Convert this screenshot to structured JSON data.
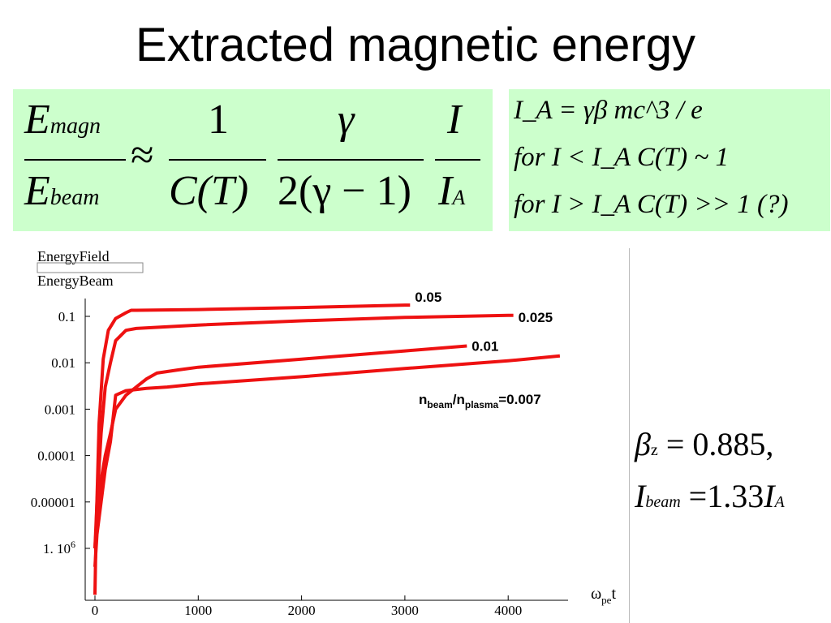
{
  "title": "Extracted magnetic energy",
  "formula": {
    "lhs_num": "E",
    "lhs_num_sub": "magn",
    "lhs_den": "E",
    "lhs_den_sub": "beam",
    "approx": "≈",
    "f1_num": "1",
    "f1_den": "C(T)",
    "f2_num": "γ",
    "f2_den": "2(γ − 1)",
    "f3_num": "I",
    "f3_den": "I",
    "f3_den_sub": "A"
  },
  "conditions": {
    "line1": "I_A = γβ mc^3 / e",
    "line2": "for I < I_A C(T) ~ 1",
    "line3": "for I > I_A C(T) >> 1 (?)"
  },
  "params": {
    "beta_sym": "β",
    "beta_sub": "z",
    "beta_val": "= 0.885,",
    "ibeam_sym": "I",
    "ibeam_sub": "beam",
    "ibeam_val": "=1.33",
    "ia_sym": "I",
    "ia_sub": "A"
  },
  "chart_data": {
    "type": "line",
    "ylabel_top": "EnergyField",
    "ylabel_bottom": "EnergyBeam",
    "xlabel": "ω",
    "xlabel_sub": "pe",
    "xlabel_end": "t",
    "yscale": "log",
    "ylim": [
      1e-07,
      0.2
    ],
    "xlim": [
      0,
      4700
    ],
    "xticks": [
      0,
      1000,
      2000,
      3000,
      4000
    ],
    "xtick_labels": [
      "0",
      "1000",
      "2000",
      "3000",
      "4000"
    ],
    "yticks": [
      0.1,
      0.01,
      0.001,
      0.0001,
      1e-05,
      1e-06
    ],
    "ytick_labels": [
      "0.1",
      "0.01",
      "0.001",
      "0.0001",
      "0.00001",
      "1. 10"
    ],
    "ytick_last_exp": "6",
    "line_color": "#ee1111",
    "annotation_prefix": "n",
    "annotation_sub1": "beam",
    "annotation_slash": "/n",
    "annotation_sub2": "plasma",
    "annotation_suffix": "=0.007",
    "series": [
      {
        "name": "0.05",
        "x": [
          0,
          10,
          40,
          80,
          130,
          200,
          300,
          350,
          400,
          1000,
          2000,
          3000,
          3050
        ],
        "y": [
          1e-07,
          2e-06,
          0.0005,
          0.012,
          0.05,
          0.09,
          0.12,
          0.135,
          0.135,
          0.14,
          0.155,
          0.175,
          0.175
        ]
      },
      {
        "name": "0.025",
        "x": [
          0,
          20,
          60,
          100,
          150,
          200,
          300,
          400,
          1000,
          2000,
          3000,
          4000,
          4050
        ],
        "y": [
          1e-06,
          1e-05,
          0.0003,
          0.003,
          0.01,
          0.03,
          0.05,
          0.055,
          0.065,
          0.08,
          0.095,
          0.105,
          0.105
        ]
      },
      {
        "name": "0.01",
        "x": [
          0,
          20,
          60,
          100,
          150,
          200,
          300,
          400,
          500,
          600,
          800,
          1000,
          2000,
          3000,
          3600
        ],
        "y": [
          1e-06,
          5e-06,
          3e-05,
          0.0001,
          0.0003,
          0.001,
          0.002,
          0.003,
          0.0045,
          0.006,
          0.007,
          0.008,
          0.012,
          0.018,
          0.023
        ]
      },
      {
        "name": "0.007",
        "x": [
          0,
          20,
          60,
          100,
          150,
          200,
          300,
          500,
          700,
          1000,
          2000,
          3000,
          4000,
          4500
        ],
        "y": [
          4e-07,
          2e-06,
          1e-05,
          5e-05,
          0.0002,
          0.002,
          0.0025,
          0.0028,
          0.003,
          0.0035,
          0.005,
          0.0075,
          0.011,
          0.014
        ]
      }
    ]
  }
}
